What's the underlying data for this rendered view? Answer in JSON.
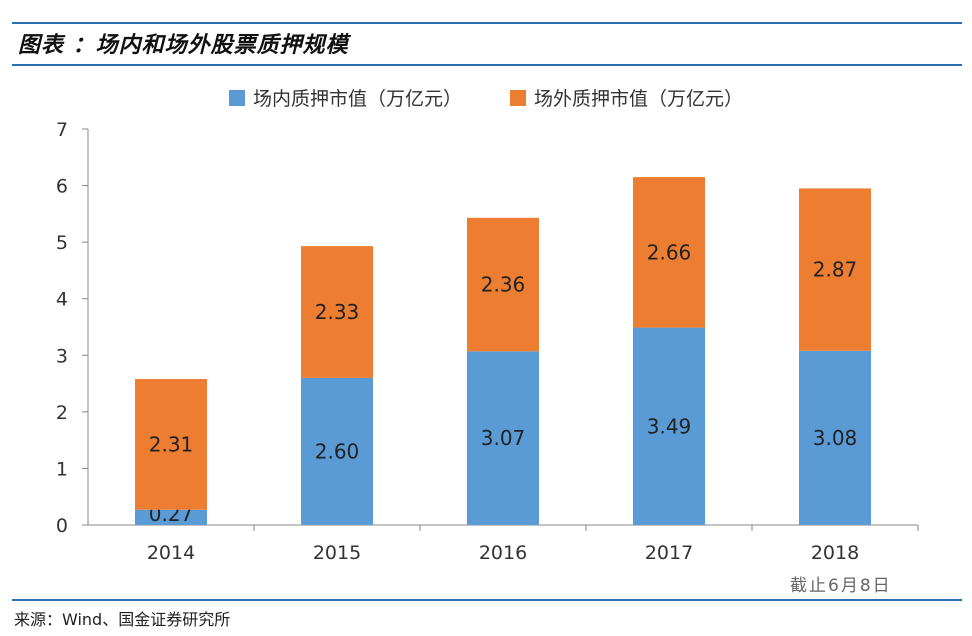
{
  "title": "图表 ：场内和场外股票质押规模",
  "legend": {
    "inside_label": "场内质押市值（万亿元）",
    "outside_label": "场外质押市值（万亿元）"
  },
  "colors": {
    "inside": "#5b9bd5",
    "outside": "#ed7d31",
    "rule": "#2a6fb6"
  },
  "source": "来源：Wind、国金证券研究所",
  "stamp": "截止6月8日",
  "chart_data": {
    "type": "bar",
    "stacked": true,
    "categories": [
      "2014",
      "2015",
      "2016",
      "2017",
      "2018"
    ],
    "series": [
      {
        "name": "场内质押市值（万亿元）",
        "values": [
          0.27,
          2.6,
          3.07,
          3.49,
          3.08
        ],
        "labels": [
          "0.27",
          "2.60",
          "3.07",
          "3.49",
          "3.08"
        ]
      },
      {
        "name": "场外质押市值（万亿元）",
        "values": [
          2.31,
          2.33,
          2.36,
          2.66,
          2.87
        ],
        "labels": [
          "2.31",
          "2.33",
          "2.36",
          "2.66",
          "2.87"
        ]
      }
    ],
    "ylim": [
      0,
      7
    ],
    "yticks": [
      "0",
      "1",
      "2",
      "3",
      "4",
      "5",
      "6",
      "7"
    ],
    "xlabel": "",
    "ylabel": "",
    "grid": false,
    "legend_position": "top"
  }
}
